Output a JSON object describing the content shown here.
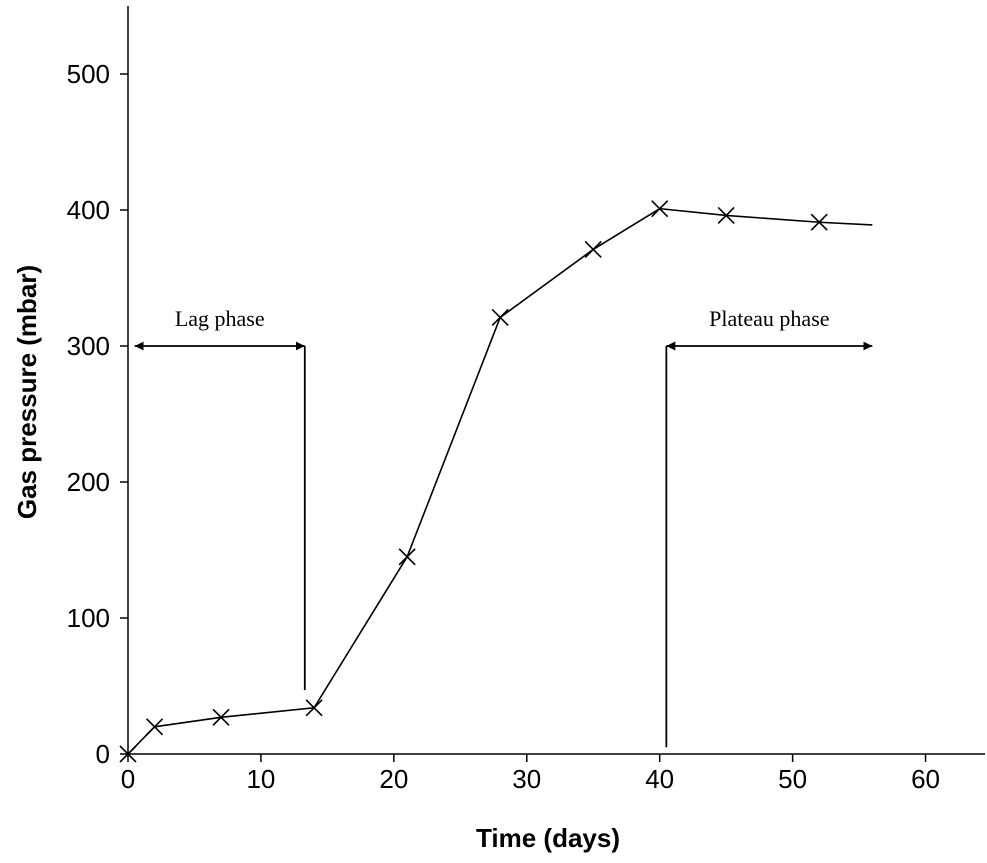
{
  "chart_data": {
    "type": "line",
    "xlabel": "Time (days)",
    "ylabel": "Gas pressure (mbar)",
    "xlim": [
      0,
      65
    ],
    "ylim": [
      0,
      550
    ],
    "xticks": [
      0,
      10,
      20,
      30,
      40,
      50,
      60
    ],
    "yticks": [
      0,
      100,
      200,
      300,
      400,
      500
    ],
    "grid": false,
    "series": [
      {
        "marker": "x",
        "color": "#000000",
        "x": [
          0,
          2,
          7,
          14,
          21,
          28,
          35,
          40,
          45,
          52
        ],
        "y": [
          0,
          20,
          27,
          34,
          145,
          321,
          371,
          401,
          396,
          391
        ]
      }
    ],
    "trailing_line": {
      "x": [
        52,
        56
      ],
      "y": [
        391,
        389
      ]
    },
    "annotations": [
      {
        "text": "Lag phase",
        "arrow_x": [
          0.5,
          13.3
        ],
        "arrow_y": 300,
        "arrow_heads": "both",
        "drop_line_x": 13.3,
        "drop_line_y": [
          47,
          300
        ]
      },
      {
        "text": "Plateau phase",
        "arrow_x": [
          40.5,
          56
        ],
        "arrow_y": 300,
        "arrow_heads": "both",
        "drop_line_x": 40.5,
        "drop_line_y": [
          5,
          300
        ]
      }
    ]
  }
}
